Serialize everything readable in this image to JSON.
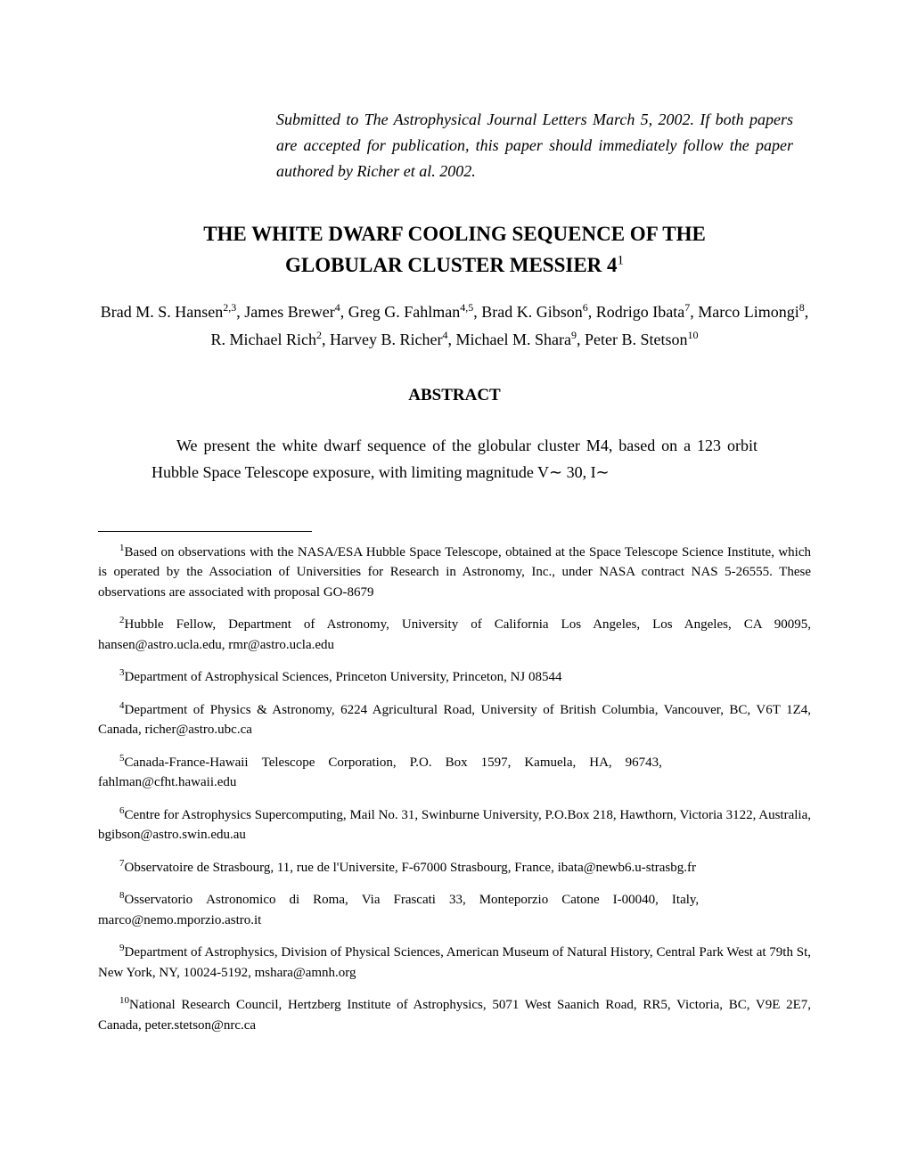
{
  "submission_note": "Submitted to The Astrophysical Journal Letters March 5, 2002. If both papers are accepted for publication, this paper should immediately follow the paper authored by Richer et al. 2002.",
  "title_line1": "THE WHITE DWARF COOLING SEQUENCE OF THE",
  "title_line2": "GLOBULAR CLUSTER MESSIER 4",
  "title_footnote_mark": "1",
  "authors_html": "Brad M. S. Hansen<sup>2,3</sup>, James Brewer<sup>4</sup>, Greg G. Fahlman<sup>4,5</sup>, Brad K. Gibson<sup>6</sup>, Rodrigo Ibata<sup>7</sup>, Marco Limongi<sup>8</sup>, R. Michael Rich<sup>2</sup>, Harvey B. Richer<sup>4</sup>, Michael M. Shara<sup>9</sup>, Peter B. Stetson<sup>10</sup>",
  "abstract_heading": "ABSTRACT",
  "abstract_body": "We present the white dwarf sequence of the globular cluster M4, based on a 123 orbit Hubble Space Telescope exposure, with limiting magnitude V∼ 30, I∼",
  "footnotes": {
    "f1": "Based on observations with the NASA/ESA Hubble Space Telescope, obtained at the Space Telescope Science Institute, which is operated by the Association of Universities for Research in Astronomy, Inc., under NASA contract NAS 5-26555. These observations are associated with proposal GO-8679",
    "f2": "Hubble Fellow, Department of Astronomy, University of California Los Angeles, Los Angeles, CA 90095, hansen@astro.ucla.edu, rmr@astro.ucla.edu",
    "f3": "Department of Astrophysical Sciences, Princeton University, Princeton, NJ 08544",
    "f4": "Department of Physics & Astronomy, 6224 Agricultural Road, University of British Columbia, Vancouver, BC, V6T 1Z4, Canada, richer@astro.ubc.ca",
    "f5_line1": "Canada-France-Hawaii Telescope Corporation, P.O. Box 1597, Kamuela, HA, 96743,",
    "f5_line2": "fahlman@cfht.hawaii.edu",
    "f6": "Centre for Astrophysics Supercomputing, Mail No. 31, Swinburne University, P.O.Box 218, Hawthorn, Victoria 3122, Australia, bgibson@astro.swin.edu.au",
    "f7": "Observatoire de Strasbourg, 11, rue de l'Universite, F-67000 Strasbourg, France, ibata@newb6.u-strasbg.fr",
    "f8_line1": "Osservatorio Astronomico di Roma, Via Frascati 33, Monteporzio Catone I-00040, Italy,",
    "f8_line2": "marco@nemo.mporzio.astro.it",
    "f9": "Department of Astrophysics, Division of Physical Sciences, American Museum of Natural History, Central Park West at 79th St, New York, NY, 10024-5192, mshara@amnh.org",
    "f10": "National Research Council, Hertzberg Institute of Astrophysics, 5071 West Saanich Road, RR5, Victoria, BC, V9E 2E7, Canada, peter.stetson@nrc.ca"
  },
  "colors": {
    "text": "#000000",
    "background": "#ffffff"
  },
  "typography": {
    "body_font": "Times New Roman",
    "title_fontsize": 23,
    "author_fontsize": 18,
    "abstract_fontsize": 18,
    "footnote_fontsize": 15
  }
}
